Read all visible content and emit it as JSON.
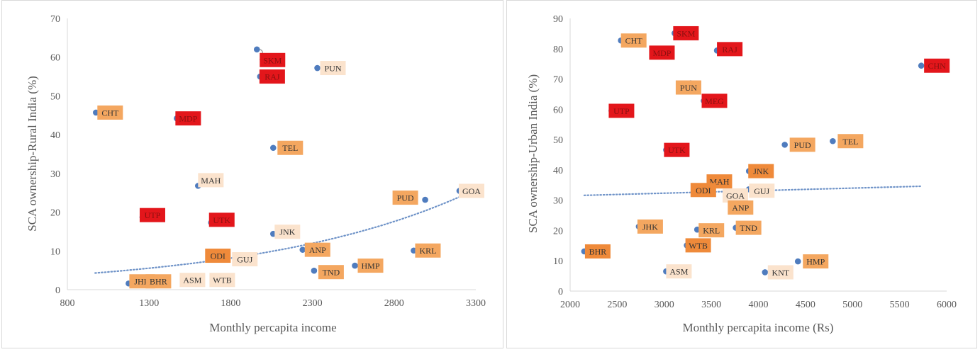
{
  "colors": {
    "point": "#4f7cbe",
    "trend": "#6f93c8",
    "axis_text": "#595959",
    "grid": "#d9d9d9",
    "label_red": "#e3161b",
    "label_orange": "#ef8a3a",
    "label_lightorange": "#f4a760",
    "label_peach": "#fbe3cd"
  },
  "chart_data": [
    {
      "type": "scatter",
      "title": "",
      "xlabel": "Monthly percapita income",
      "ylabel": "SCA ownership-Rural India (%)",
      "xlim": [
        800,
        3300
      ],
      "ylim": [
        0,
        70
      ],
      "x_ticks": [
        "800",
        "1300",
        "1800",
        "2300",
        "2800",
        "3300"
      ],
      "y_ticks": [
        "0",
        "10",
        "20",
        "30",
        "40",
        "50",
        "60",
        "70"
      ],
      "grid": false,
      "trendline": {
        "style": "dotted",
        "kind": "exponential",
        "x": [
          970,
          3230
        ],
        "y": [
          4.3,
          24.5
        ]
      },
      "series": [
        {
          "points": [
            {
              "label": "SKM",
              "x": 1960,
              "y": 62,
              "style": "red"
            },
            {
              "label": "PUN",
              "x": 2330,
              "y": 57.2,
              "style": "peach"
            },
            {
              "label": "RAJ",
              "x": 1980,
              "y": 55,
              "style": "red"
            },
            {
              "label": "CHT",
              "x": 975,
              "y": 45.7,
              "style": "lightorange"
            },
            {
              "label": "MDP",
              "x": 1470,
              "y": 44.2,
              "style": "red"
            },
            {
              "label": "TEL",
              "x": 2060,
              "y": 36.6,
              "style": "lightorange"
            },
            {
              "label": "MAH",
              "x": 1600,
              "y": 26.8,
              "style": "peach"
            },
            {
              "label": "PUD",
              "x": 2990,
              "y": 23.2,
              "style": "lightorange"
            },
            {
              "label": "GOA",
              "x": 3200,
              "y": 25.5,
              "style": "peach"
            },
            {
              "label": "UTP",
              "x": 1260,
              "y": 18.7,
              "style": "red"
            },
            {
              "label": "UTK",
              "x": 1680,
              "y": 17.3,
              "style": "red"
            },
            {
              "label": "JNK",
              "x": 2060,
              "y": 14.4,
              "style": "peach"
            },
            {
              "label": "KRL",
              "x": 2920,
              "y": 10.1,
              "style": "lightorange"
            },
            {
              "label": "ANP",
              "x": 2240,
              "y": 10.3,
              "style": "lightorange"
            },
            {
              "label": "ODI",
              "x": 1730,
              "y": 8.4,
              "style": "orange"
            },
            {
              "label": "GUJ",
              "x": 1730,
              "y": 8.4,
              "style": "peach"
            },
            {
              "label": "HMP",
              "x": 2560,
              "y": 6.2,
              "style": "lightorange"
            },
            {
              "label": "TND",
              "x": 2310,
              "y": 4.9,
              "style": "lightorange"
            },
            {
              "label": "JHK",
              "x": 1175,
              "y": 1.6,
              "style": "lightorange"
            },
            {
              "label": "BHR",
              "x": 1175,
              "y": 1.6,
              "style": "lightorange"
            },
            {
              "label": "ASM",
              "x": 1175,
              "y": 1.6,
              "style": "peach"
            },
            {
              "label": "WTB",
              "x": 1175,
              "y": 1.6,
              "style": "peach"
            }
          ]
        }
      ]
    },
    {
      "type": "scatter",
      "title": "",
      "xlabel": "Monthly percapita income (Rs)",
      "ylabel": "SCA ownership-Urban India (%)",
      "xlim": [
        2000,
        6000
      ],
      "ylim": [
        0,
        90
      ],
      "x_ticks": [
        "2000",
        "2500",
        "3000",
        "3500",
        "4000",
        "4500",
        "5000",
        "5500",
        "6000"
      ],
      "y_ticks": [
        "0",
        "10",
        "20",
        "30",
        "40",
        "50",
        "60",
        "70",
        "80",
        "90"
      ],
      "grid": false,
      "trendline": {
        "style": "dotted",
        "kind": "linear",
        "x": [
          2150,
          5730
        ],
        "y": [
          31.6,
          34.6
        ]
      },
      "series": [
        {
          "points": [
            {
              "label": "CHT",
              "x": 2540,
              "y": 82.7,
              "style": "lightorange"
            },
            {
              "label": "SKM",
              "x": 3110,
              "y": 85.1,
              "style": "red"
            },
            {
              "label": "MDP",
              "x": 2930,
              "y": 78.7,
              "style": "red"
            },
            {
              "label": "RAJ",
              "x": 3560,
              "y": 79.4,
              "style": "red"
            },
            {
              "label": "CHN",
              "x": 5730,
              "y": 74.4,
              "style": "red"
            },
            {
              "label": "PUN",
              "x": 3280,
              "y": 68.6,
              "style": "lightorange"
            },
            {
              "label": "MEG",
              "x": 3420,
              "y": 62.8,
              "style": "red"
            },
            {
              "label": "UTP",
              "x": 2440,
              "y": 59.5,
              "style": "red"
            },
            {
              "label": "TEL",
              "x": 4790,
              "y": 49.5,
              "style": "lightorange"
            },
            {
              "label": "PUD",
              "x": 4280,
              "y": 48.3,
              "style": "lightorange"
            },
            {
              "label": "UTK",
              "x": 3020,
              "y": 46.6,
              "style": "red"
            },
            {
              "label": "JNK",
              "x": 3900,
              "y": 39.6,
              "style": "orange"
            },
            {
              "label": "MAH",
              "x": 3510,
              "y": 36.2,
              "style": "orange"
            },
            {
              "label": "GUJ",
              "x": 3900,
              "y": 33.6,
              "style": "peach"
            },
            {
              "label": "ODI",
              "x": 3430,
              "y": 33.6,
              "style": "orange"
            },
            {
              "label": "GOA",
              "x": 3740,
              "y": 32.5,
              "style": "peach"
            },
            {
              "label": "ANP",
              "x": 3750,
              "y": 28.5,
              "style": "lightorange"
            },
            {
              "label": "JHK",
              "x": 2730,
              "y": 21.3,
              "style": "lightorange"
            },
            {
              "label": "KRL",
              "x": 3350,
              "y": 20.3,
              "style": "lightorange"
            },
            {
              "label": "TND",
              "x": 3760,
              "y": 20.9,
              "style": "lightorange"
            },
            {
              "label": "WTB",
              "x": 3240,
              "y": 15.1,
              "style": "orange"
            },
            {
              "label": "BHR",
              "x": 2150,
              "y": 13.1,
              "style": "orange"
            },
            {
              "label": "HMP",
              "x": 4420,
              "y": 9.8,
              "style": "lightorange"
            },
            {
              "label": "ASM",
              "x": 3020,
              "y": 6.5,
              "style": "peach"
            },
            {
              "label": "KNT",
              "x": 4070,
              "y": 6.2,
              "style": "peach"
            }
          ]
        }
      ]
    }
  ]
}
